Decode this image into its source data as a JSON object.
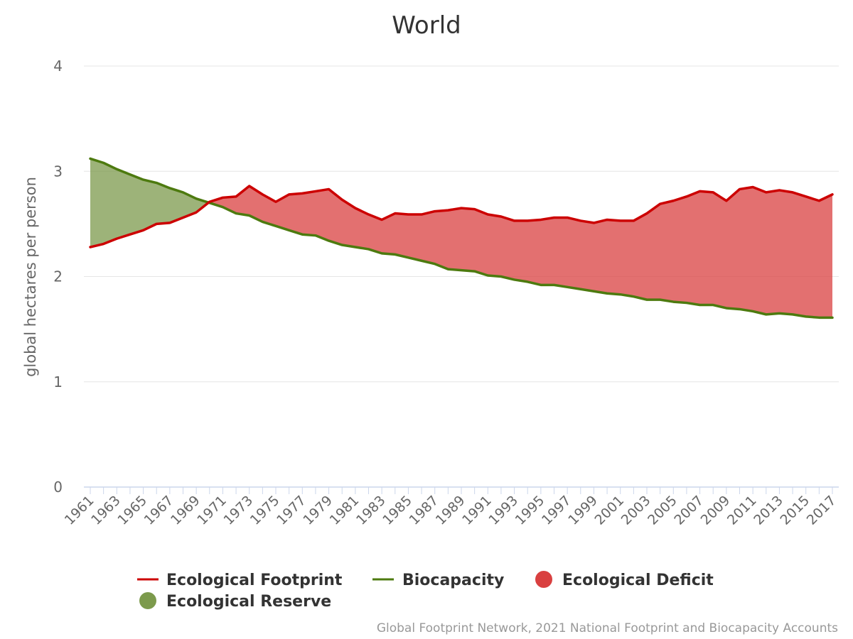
{
  "chart_data": {
    "type": "area",
    "title": "World",
    "xlabel": "",
    "ylabel": "global hectares per person",
    "ylim": [
      0,
      4
    ],
    "yticks": [
      "0",
      "1",
      "2",
      "3",
      "4"
    ],
    "x": [
      1961,
      1962,
      1963,
      1964,
      1965,
      1966,
      1967,
      1968,
      1969,
      1970,
      1971,
      1972,
      1973,
      1974,
      1975,
      1976,
      1977,
      1978,
      1979,
      1980,
      1981,
      1982,
      1983,
      1984,
      1985,
      1986,
      1987,
      1988,
      1989,
      1990,
      1991,
      1992,
      1993,
      1994,
      1995,
      1996,
      1997,
      1998,
      1999,
      2000,
      2001,
      2002,
      2003,
      2004,
      2005,
      2006,
      2007,
      2008,
      2009,
      2010,
      2011,
      2012,
      2013,
      2014,
      2015,
      2016,
      2017
    ],
    "xtick_labels": [
      "1961",
      "1963",
      "1965",
      "1967",
      "1969",
      "1971",
      "1973",
      "1975",
      "1977",
      "1979",
      "1981",
      "1983",
      "1985",
      "1987",
      "1989",
      "1991",
      "1993",
      "1995",
      "1997",
      "1999",
      "2001",
      "2003",
      "2005",
      "2007",
      "2009",
      "2011",
      "2013",
      "2015",
      "2017"
    ],
    "grid": true,
    "legend_position": "bottom",
    "series": [
      {
        "name": "Ecological Footprint",
        "color": "#cc0000",
        "values": [
          2.28,
          2.31,
          2.36,
          2.4,
          2.44,
          2.5,
          2.51,
          2.56,
          2.61,
          2.71,
          2.75,
          2.76,
          2.86,
          2.78,
          2.71,
          2.78,
          2.79,
          2.81,
          2.83,
          2.73,
          2.65,
          2.59,
          2.54,
          2.6,
          2.59,
          2.59,
          2.62,
          2.63,
          2.65,
          2.64,
          2.59,
          2.57,
          2.53,
          2.53,
          2.54,
          2.56,
          2.56,
          2.53,
          2.51,
          2.54,
          2.53,
          2.53,
          2.6,
          2.69,
          2.72,
          2.76,
          2.81,
          2.8,
          2.72,
          2.83,
          2.85,
          2.8,
          2.82,
          2.8,
          2.76,
          2.72,
          2.78
        ]
      },
      {
        "name": "Biocapacity",
        "color": "#4d7a0f",
        "values": [
          3.12,
          3.08,
          3.02,
          2.97,
          2.92,
          2.89,
          2.84,
          2.8,
          2.74,
          2.7,
          2.66,
          2.6,
          2.58,
          2.52,
          2.48,
          2.44,
          2.4,
          2.39,
          2.34,
          2.3,
          2.28,
          2.26,
          2.22,
          2.21,
          2.18,
          2.15,
          2.12,
          2.07,
          2.06,
          2.05,
          2.01,
          2.0,
          1.97,
          1.95,
          1.92,
          1.92,
          1.9,
          1.88,
          1.86,
          1.84,
          1.83,
          1.81,
          1.78,
          1.78,
          1.76,
          1.75,
          1.73,
          1.73,
          1.7,
          1.69,
          1.67,
          1.64,
          1.65,
          1.64,
          1.62,
          1.61,
          1.61
        ]
      }
    ],
    "fills": [
      {
        "name": "Ecological Deficit",
        "color": "#d94040"
      },
      {
        "name": "Ecological Reserve",
        "color": "#7c9a4c"
      }
    ],
    "credits": "Global Footprint Network, 2021 National Footprint and Biocapacity Accounts"
  }
}
